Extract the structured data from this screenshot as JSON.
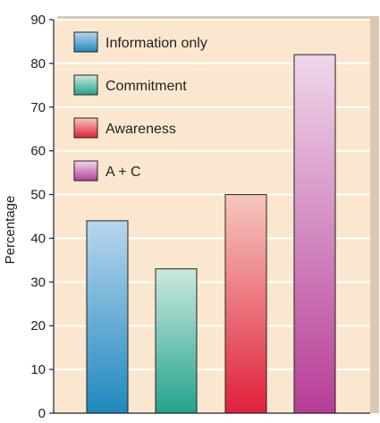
{
  "chart_data": {
    "type": "bar",
    "title": "",
    "xlabel": "",
    "ylabel": "Percentage",
    "ylim": [
      0,
      90
    ],
    "yticks": [
      0,
      10,
      20,
      30,
      40,
      50,
      60,
      70,
      80,
      90
    ],
    "grid": true,
    "legend_position": "top-left",
    "series": [
      {
        "name": "Information only",
        "value": 44,
        "color_top": "#b9d6ee",
        "color_bottom": "#1f88bd"
      },
      {
        "name": "Commitment",
        "value": 33,
        "color_top": "#cde8e0",
        "color_bottom": "#22a38c"
      },
      {
        "name": "Awareness",
        "value": 50,
        "color_top": "#f6c8bd",
        "color_bottom": "#e0203d"
      },
      {
        "name": "A + C",
        "value": 82,
        "color_top": "#efd7ea",
        "color_bottom": "#b63d97"
      }
    ]
  },
  "colors": {
    "background": "#fbe7cf",
    "grid": "#ffffff",
    "axis": "#222222"
  }
}
